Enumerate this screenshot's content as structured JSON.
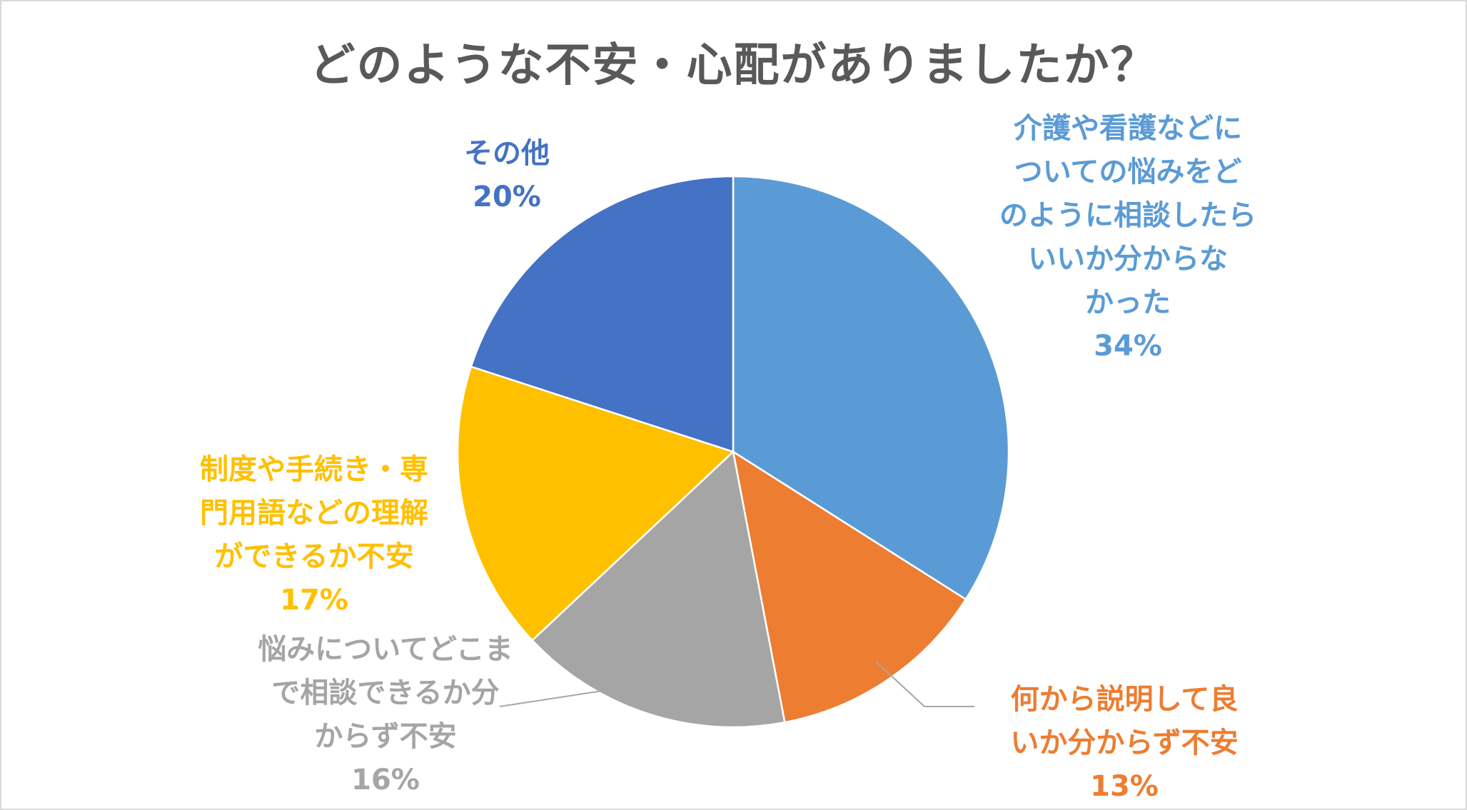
{
  "chart_data": {
    "type": "pie",
    "title": "どのような不安・心配がありましたか？",
    "start_angle_deg": 0,
    "direction": "clockwise",
    "slices": [
      {
        "id": "care-consult",
        "label_lines": [
          "介護や看護などに",
          "ついての悩みをど",
          "のように相談したら",
          "いいか分からな",
          "かった"
        ],
        "percent_label": "34%",
        "value": 34,
        "color": "#5b9bd5"
      },
      {
        "id": "explain",
        "label_lines": [
          "何から説明して良",
          "いか分からず不安"
        ],
        "percent_label": "13%",
        "value": 13,
        "color": "#ed7d31"
      },
      {
        "id": "extent",
        "label_lines": [
          "悩みについてどこま",
          "で相談できるか分",
          "からず不安"
        ],
        "percent_label": "16%",
        "value": 16,
        "color": "#a5a5a5"
      },
      {
        "id": "procedures",
        "label_lines": [
          "制度や手続き・専",
          "門用語などの理解",
          "ができるか不安"
        ],
        "percent_label": "17%",
        "value": 17,
        "color": "#ffc000"
      },
      {
        "id": "other",
        "label_lines": [
          "その他"
        ],
        "percent_label": "20%",
        "value": 20,
        "color": "#4472c4"
      }
    ],
    "legend": "none",
    "data_labels": "outside, colored to match slices"
  },
  "colors": {
    "title": "#595959",
    "leader_line": "#a6a6a6",
    "border": "#d9d9d9"
  }
}
